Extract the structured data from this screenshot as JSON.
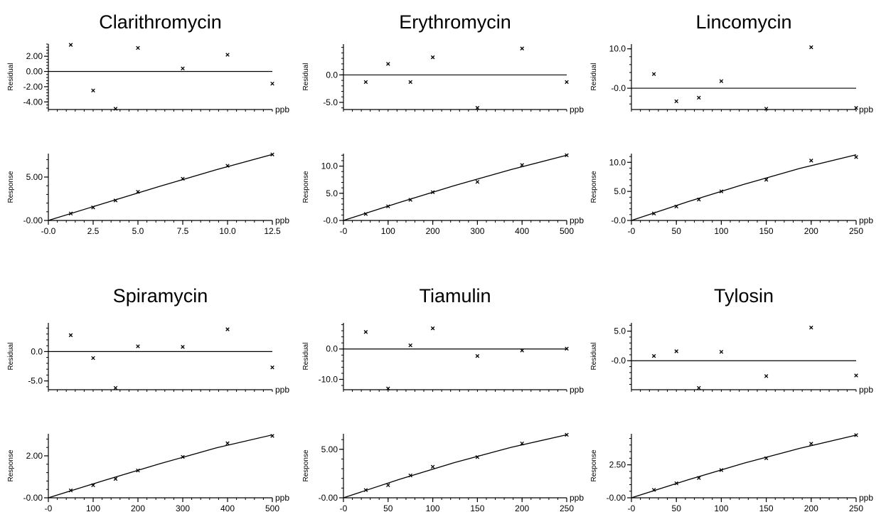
{
  "panels": [
    {
      "title": "Clarithromycin",
      "residual": {
        "type": "scatter",
        "ylabel": "Residual",
        "unit": "ppb",
        "xlim": [
          0,
          12.5
        ],
        "ylim": [
          -5.0,
          3.6
        ],
        "yticks": [
          2.0,
          0.0,
          -2.0,
          -4.0
        ],
        "ytick_labels": [
          "2.00",
          "0.00",
          "-2.00",
          "-4.00"
        ],
        "xminor": 25,
        "zero_line": true,
        "points": [
          [
            1.25,
            3.5
          ],
          [
            2.5,
            -2.5
          ],
          [
            3.75,
            -4.9
          ],
          [
            5.0,
            3.1
          ],
          [
            7.5,
            0.4
          ],
          [
            10.0,
            2.2
          ],
          [
            12.5,
            -1.6
          ]
        ]
      },
      "response": {
        "type": "line+scatter",
        "ylabel": "Response",
        "unit": "ppb",
        "xlim": [
          0,
          12.5
        ],
        "ylim": [
          0,
          7.7
        ],
        "yticks": [
          0,
          5.0
        ],
        "ytick_labels": [
          "-0.00",
          "5.00"
        ],
        "xticks": [
          0,
          2.5,
          5.0,
          7.5,
          10.0,
          12.5
        ],
        "xtick_labels": [
          "-0.0",
          "2.5",
          "5.0",
          "7.5",
          "10.0",
          "12.5"
        ],
        "xminor": 25,
        "points": [
          [
            1.25,
            0.8
          ],
          [
            2.5,
            1.5
          ],
          [
            3.75,
            2.3
          ],
          [
            5.0,
            3.3
          ],
          [
            7.5,
            4.8
          ],
          [
            10.0,
            6.3
          ],
          [
            12.5,
            7.6
          ]
        ],
        "fit": [
          [
            0,
            0
          ],
          [
            3.125,
            1.99
          ],
          [
            6.25,
            3.95
          ],
          [
            9.375,
            5.85
          ],
          [
            12.5,
            7.6
          ]
        ]
      }
    },
    {
      "title": "Erythromycin",
      "residual": {
        "type": "scatter",
        "ylabel": "Residual",
        "unit": "ppb",
        "xlim": [
          0,
          500
        ],
        "ylim": [
          -6.3,
          5.6
        ],
        "yticks": [
          0.0,
          -5.0
        ],
        "ytick_labels": [
          "0.0",
          "-5.0"
        ],
        "xminor": 25,
        "zero_line": true,
        "points": [
          [
            50,
            -1.3
          ],
          [
            100,
            2.0
          ],
          [
            150,
            -1.3
          ],
          [
            200,
            3.2
          ],
          [
            300,
            -6.0
          ],
          [
            400,
            4.8
          ],
          [
            500,
            -1.3
          ]
        ]
      },
      "response": {
        "type": "line+scatter",
        "ylabel": "Response",
        "unit": "ppb",
        "xlim": [
          0,
          500
        ],
        "ylim": [
          0,
          12.3
        ],
        "yticks": [
          0,
          5.0,
          10.0
        ],
        "ytick_labels": [
          "-0.0",
          "5.0",
          "10.0"
        ],
        "xticks": [
          0,
          100,
          200,
          300,
          400,
          500
        ],
        "xtick_labels": [
          "-0",
          "100",
          "200",
          "300",
          "400",
          "500"
        ],
        "xminor": 25,
        "points": [
          [
            50,
            1.2
          ],
          [
            100,
            2.6
          ],
          [
            150,
            3.8
          ],
          [
            200,
            5.2
          ],
          [
            300,
            7.1
          ],
          [
            400,
            10.2
          ],
          [
            500,
            12.0
          ]
        ],
        "fit": [
          [
            0,
            0
          ],
          [
            125,
            3.3
          ],
          [
            250,
            6.45
          ],
          [
            375,
            9.35
          ],
          [
            500,
            12.0
          ]
        ]
      }
    },
    {
      "title": "Lincomycin",
      "residual": {
        "type": "scatter",
        "ylabel": "Residual",
        "unit": "ppb",
        "xlim": [
          0,
          250
        ],
        "ylim": [
          -5.4,
          11.2
        ],
        "yticks": [
          10.0,
          0.0
        ],
        "ytick_labels": [
          "10.0",
          "-0.0"
        ],
        "xminor": 25,
        "zero_line": true,
        "points": [
          [
            25,
            3.6
          ],
          [
            50,
            -3.3
          ],
          [
            75,
            -2.4
          ],
          [
            100,
            1.8
          ],
          [
            150,
            -5.2
          ],
          [
            200,
            10.4
          ],
          [
            250,
            -5.0
          ]
        ]
      },
      "response": {
        "type": "line+scatter",
        "ylabel": "Response",
        "unit": "ppb",
        "xlim": [
          0,
          250
        ],
        "ylim": [
          0,
          11.5
        ],
        "yticks": [
          0,
          5.0,
          10.0
        ],
        "ytick_labels": [
          "-0.0",
          "5.0",
          "10.0"
        ],
        "xticks": [
          0,
          50,
          100,
          150,
          200,
          250
        ],
        "xtick_labels": [
          "-0",
          "50",
          "100",
          "150",
          "200",
          "250"
        ],
        "xminor": 25,
        "points": [
          [
            25,
            1.2
          ],
          [
            50,
            2.4
          ],
          [
            75,
            3.6
          ],
          [
            100,
            5.0
          ],
          [
            150,
            7.0
          ],
          [
            200,
            10.3
          ],
          [
            250,
            10.9
          ]
        ],
        "fit": [
          [
            0,
            0
          ],
          [
            62.5,
            3.2
          ],
          [
            125,
            6.2
          ],
          [
            187.5,
            8.95
          ],
          [
            250,
            11.3
          ]
        ]
      }
    },
    {
      "title": "Spiramycin",
      "residual": {
        "type": "scatter",
        "ylabel": "Residual",
        "unit": "ppb",
        "xlim": [
          0,
          500
        ],
        "ylim": [
          -6.5,
          4.9
        ],
        "yticks": [
          0.0,
          -5.0
        ],
        "ytick_labels": [
          "0.0",
          "-5.0"
        ],
        "xminor": 25,
        "zero_line": true,
        "points": [
          [
            50,
            2.8
          ],
          [
            100,
            -1.1
          ],
          [
            150,
            -6.2
          ],
          [
            200,
            0.9
          ],
          [
            300,
            0.8
          ],
          [
            400,
            3.8
          ],
          [
            500,
            -2.7
          ]
        ]
      },
      "response": {
        "type": "line+scatter",
        "ylabel": "Response",
        "unit": "ppb",
        "xlim": [
          0,
          500
        ],
        "ylim": [
          0,
          3.05
        ],
        "yticks": [
          0,
          2.0
        ],
        "ytick_labels": [
          "-0.00",
          "2.00"
        ],
        "xticks": [
          0,
          100,
          200,
          300,
          400,
          500
        ],
        "xtick_labels": [
          "-0",
          "100",
          "200",
          "300",
          "400",
          "500"
        ],
        "xminor": 25,
        "points": [
          [
            50,
            0.35
          ],
          [
            100,
            0.6
          ],
          [
            150,
            0.9
          ],
          [
            200,
            1.3
          ],
          [
            300,
            1.95
          ],
          [
            400,
            2.6
          ],
          [
            500,
            2.95
          ]
        ],
        "fit": [
          [
            0,
            0
          ],
          [
            125,
            0.83
          ],
          [
            250,
            1.63
          ],
          [
            375,
            2.38
          ],
          [
            500,
            3.0
          ]
        ]
      }
    },
    {
      "title": "Tiamulin",
      "residual": {
        "type": "scatter",
        "ylabel": "Residual",
        "unit": "ppb",
        "xlim": [
          0,
          250
        ],
        "ylim": [
          -13.4,
          8.6
        ],
        "yticks": [
          0.0,
          -10.0
        ],
        "ytick_labels": [
          "0.0",
          "-10.0"
        ],
        "xminor": 25,
        "zero_line": true,
        "points": [
          [
            25,
            5.6
          ],
          [
            50,
            -13.0
          ],
          [
            75,
            1.2
          ],
          [
            100,
            6.8
          ],
          [
            150,
            -2.3
          ],
          [
            200,
            -0.5
          ],
          [
            250,
            0.1
          ]
        ]
      },
      "response": {
        "type": "line+scatter",
        "ylabel": "Response",
        "unit": "ppb",
        "xlim": [
          0,
          250
        ],
        "ylim": [
          0,
          6.6
        ],
        "yticks": [
          0,
          5.0
        ],
        "ytick_labels": [
          "-0.00",
          "5.00"
        ],
        "xticks": [
          0,
          50,
          100,
          150,
          200,
          250
        ],
        "xtick_labels": [
          "-0",
          "50",
          "100",
          "150",
          "200",
          "250"
        ],
        "xminor": 25,
        "points": [
          [
            25,
            0.8
          ],
          [
            50,
            1.3
          ],
          [
            75,
            2.3
          ],
          [
            100,
            3.2
          ],
          [
            150,
            4.2
          ],
          [
            200,
            5.6
          ],
          [
            250,
            6.5
          ]
        ],
        "fit": [
          [
            0,
            0
          ],
          [
            62.5,
            1.9
          ],
          [
            125,
            3.65
          ],
          [
            187.5,
            5.2
          ],
          [
            250,
            6.5
          ]
        ]
      }
    },
    {
      "title": "Tylosin",
      "residual": {
        "type": "scatter",
        "ylabel": "Residual",
        "unit": "ppb",
        "xlim": [
          0,
          250
        ],
        "ylim": [
          -4.9,
          6.4
        ],
        "yticks": [
          5.0,
          0.0
        ],
        "ytick_labels": [
          "5.0",
          "-0.0"
        ],
        "xminor": 25,
        "zero_line": true,
        "points": [
          [
            25,
            0.8
          ],
          [
            50,
            1.6
          ],
          [
            75,
            -4.6
          ],
          [
            100,
            1.5
          ],
          [
            150,
            -2.6
          ],
          [
            200,
            5.6
          ],
          [
            250,
            -2.5
          ]
        ]
      },
      "response": {
        "type": "line+scatter",
        "ylabel": "Response",
        "unit": "ppb",
        "xlim": [
          0,
          250
        ],
        "ylim": [
          0,
          4.85
        ],
        "yticks": [
          0,
          2.5
        ],
        "ytick_labels": [
          "-0.00",
          "2.50"
        ],
        "xticks": [
          0,
          50,
          100,
          150,
          200,
          250
        ],
        "xtick_labels": [
          "-0",
          "50",
          "100",
          "150",
          "200",
          "250"
        ],
        "xminor": 25,
        "points": [
          [
            25,
            0.6
          ],
          [
            50,
            1.1
          ],
          [
            75,
            1.5
          ],
          [
            100,
            2.1
          ],
          [
            150,
            3.0
          ],
          [
            200,
            4.1
          ],
          [
            250,
            4.75
          ]
        ],
        "fit": [
          [
            0,
            0
          ],
          [
            62.5,
            1.35
          ],
          [
            125,
            2.62
          ],
          [
            187.5,
            3.75
          ],
          [
            250,
            4.75
          ]
        ]
      }
    }
  ]
}
